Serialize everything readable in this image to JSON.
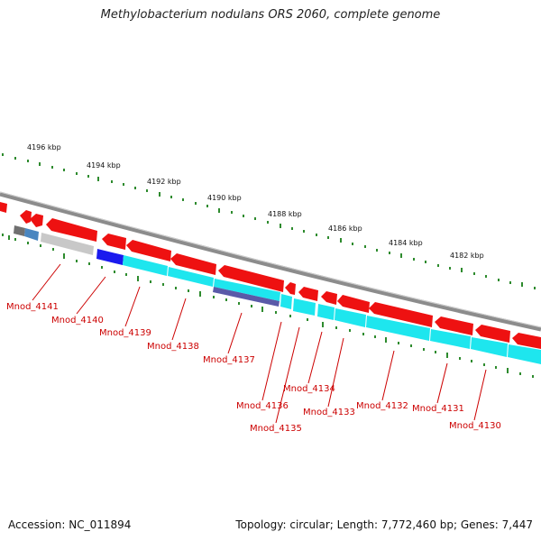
{
  "title": "Methylobacterium nodulans ORS 2060, complete genome",
  "scale_labels": [
    "4196 kbp",
    "4194 kbp",
    "4192 kbp",
    "4190 kbp",
    "4188 kbp",
    "4186 kbp",
    "4184 kbp",
    "4182 kbp"
  ],
  "genes": [
    "Mnod_4141",
    "Mnod_4140",
    "Mnod_4139",
    "Mnod_4138",
    "Mnod_4137",
    "Mnod_4136",
    "Mnod_4135",
    "Mnod_4134",
    "Mnod_4133",
    "Mnod_4132",
    "Mnod_4131",
    "Mnod_4130"
  ],
  "footer": {
    "accession": "Accession: NC_011894",
    "summary": "Topology: circular; Length: 7,772,460 bp; Genes: 7,447"
  },
  "colors": {
    "cds": "#ee1111",
    "gene": "#1ee6ee",
    "label": "#cc0000",
    "tick": "#2e8b2e",
    "backbone": "#8c8c8c"
  }
}
